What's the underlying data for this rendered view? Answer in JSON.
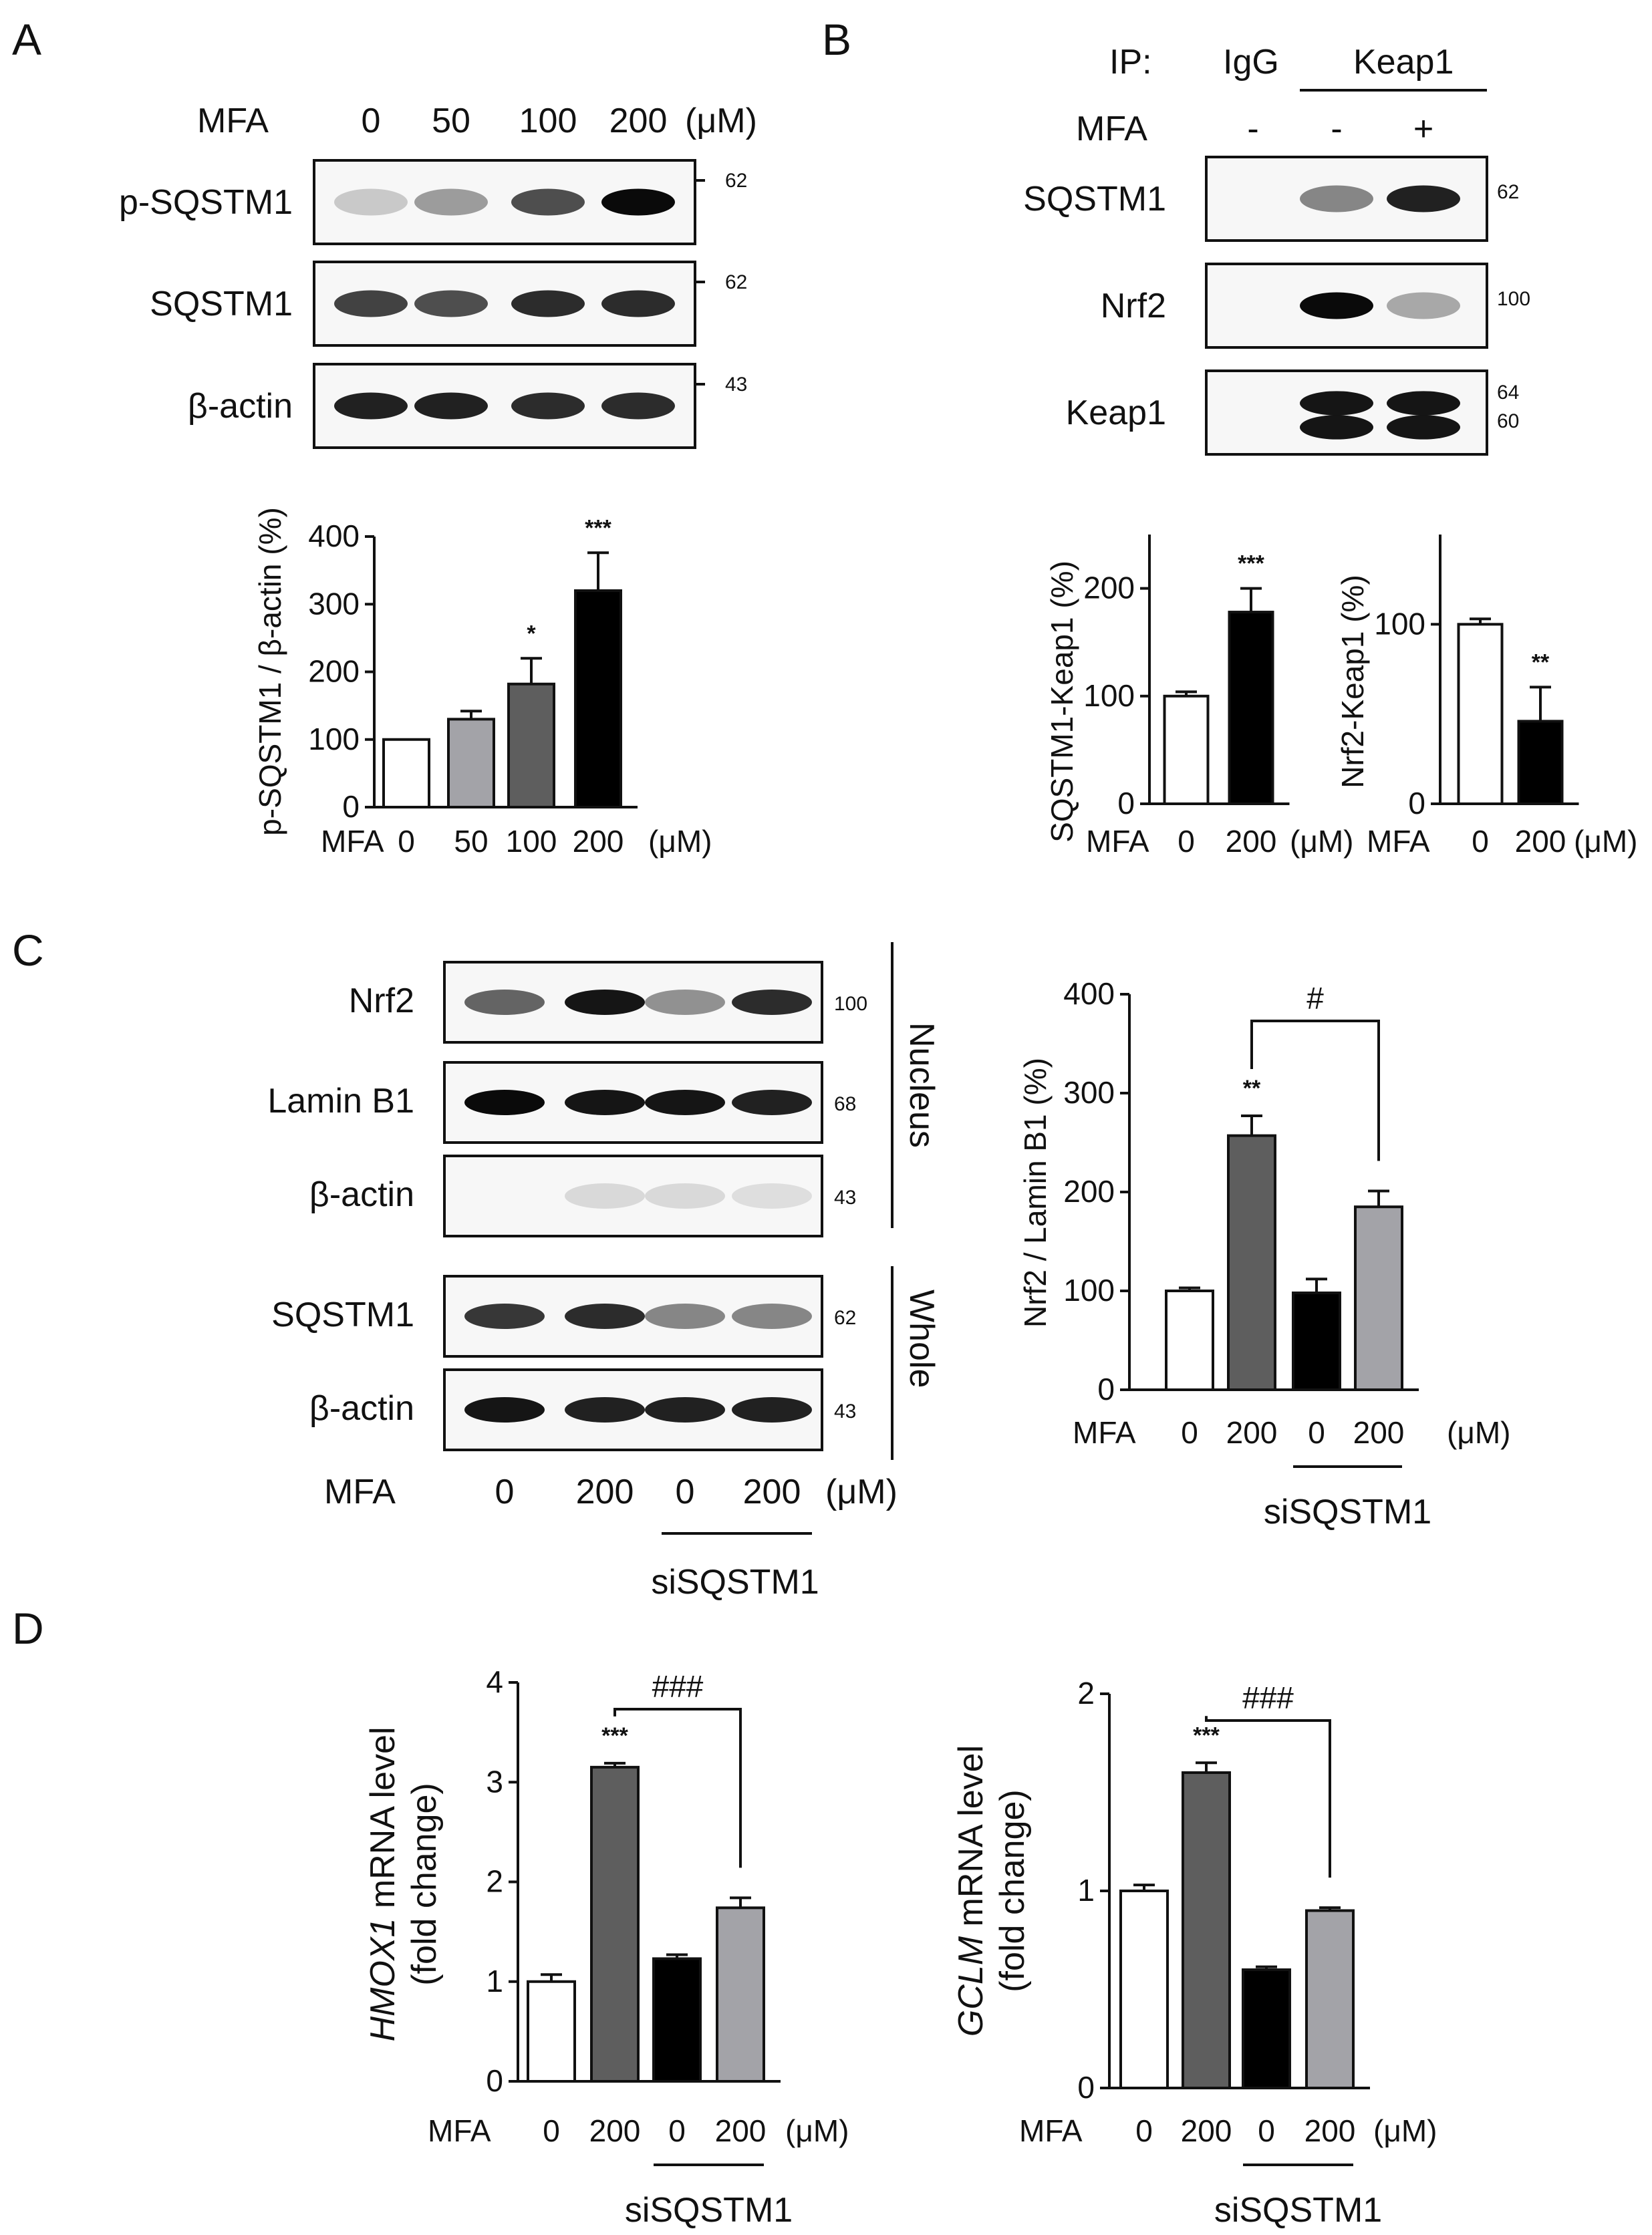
{
  "panels": {
    "A": {
      "letter": "A",
      "blot": {
        "treat_label": "MFA",
        "unit": "(μM)",
        "lanes": [
          "0",
          "50",
          "100",
          "200"
        ],
        "rows": [
          {
            "label": "p-SQSTM1",
            "mw": "62",
            "bands": [
              0.15,
              0.35,
              0.7,
              1.0
            ]
          },
          {
            "label": "SQSTM1",
            "mw": "62",
            "bands": [
              0.75,
              0.7,
              0.85,
              0.85
            ]
          },
          {
            "label": "β-actin",
            "mw": "43",
            "bands": [
              0.9,
              0.9,
              0.85,
              0.85
            ]
          }
        ]
      }
    },
    "B": {
      "letter": "B",
      "ip_label": "IP:",
      "ip_groups": [
        "IgG",
        "Keap1"
      ],
      "treat_label": "MFA",
      "signs": [
        "-",
        "-",
        "+"
      ],
      "rows": [
        {
          "label": "SQSTM1",
          "mw": [
            "62"
          ],
          "bands": [
            0,
            0.45,
            0.9
          ]
        },
        {
          "label": "Nrf2",
          "mw": [
            "100"
          ],
          "bands": [
            0,
            1.0,
            0.3
          ]
        },
        {
          "label": "Keap1",
          "mw": [
            "64",
            "60"
          ],
          "bands": [
            0,
            0.95,
            0.95
          ]
        }
      ]
    },
    "C": {
      "letter": "C",
      "blot": {
        "treat_label": "MFA",
        "unit": "(μM)",
        "lanes": [
          "0",
          "200",
          "0",
          "200"
        ],
        "group_label": "siSQSTM1",
        "section_labels": [
          "Nucleus",
          "Whole"
        ],
        "rows": [
          {
            "label": "Nrf2",
            "mw": "100",
            "bands": [
              0.6,
              0.95,
              0.4,
              0.85
            ]
          },
          {
            "label": "Lamin B1",
            "mw": "68",
            "bands": [
              1.0,
              0.95,
              0.95,
              0.9
            ]
          },
          {
            "label": "β-actin",
            "mw": "43",
            "bands": [
              0.0,
              0.08,
              0.08,
              0.06
            ]
          },
          {
            "label": "SQSTM1",
            "mw": "62",
            "bands": [
              0.8,
              0.85,
              0.45,
              0.45
            ]
          },
          {
            "label": "β-actin",
            "mw": "43",
            "bands": [
              0.95,
              0.9,
              0.9,
              0.9
            ]
          }
        ]
      }
    },
    "D": {
      "letter": "D"
    }
  },
  "chart_data": [
    {
      "id": "A",
      "type": "bar",
      "ylabel": "p-SQSTM1 / β-actin (%)",
      "xlabel_prefix": "MFA",
      "unit": "(μM)",
      "categories": [
        "0",
        "50",
        "100",
        "200"
      ],
      "values": [
        100,
        130,
        182,
        320
      ],
      "errors": [
        0,
        12,
        38,
        56
      ],
      "colors": [
        "#ffffff",
        "#a3a3a8",
        "#5e5e5e",
        "#000000"
      ],
      "annotations": [
        "",
        "",
        "*",
        "***"
      ],
      "ylim": [
        0,
        400
      ],
      "yticks": [
        0,
        100,
        200,
        300,
        400
      ]
    },
    {
      "id": "B-left",
      "type": "bar",
      "ylabel": "SQSTM1-Keap1 (%)",
      "xlabel_prefix": "MFA",
      "unit": "(μM)",
      "categories": [
        "0",
        "200"
      ],
      "values": [
        100,
        178
      ],
      "errors": [
        4,
        22
      ],
      "colors": [
        "#ffffff",
        "#000000"
      ],
      "annotations": [
        "",
        "***"
      ],
      "ylim": [
        0,
        250
      ],
      "yticks": [
        0,
        100,
        200
      ]
    },
    {
      "id": "B-right",
      "type": "bar",
      "ylabel": "Nrf2-Keap1 (%)",
      "xlabel_prefix": "MFA",
      "unit": "(μM)",
      "categories": [
        "0",
        "200"
      ],
      "values": [
        100,
        46
      ],
      "errors": [
        3,
        19
      ],
      "colors": [
        "#ffffff",
        "#000000"
      ],
      "annotations": [
        "",
        "**"
      ],
      "ylim": [
        0,
        150
      ],
      "yticks": [
        0,
        100
      ]
    },
    {
      "id": "C",
      "type": "bar",
      "ylabel": "Nrf2 / Lamin B1 (%)",
      "xlabel_prefix": "MFA",
      "unit": "(μM)",
      "group_label": "siSQSTM1",
      "categories": [
        "0",
        "200",
        "0",
        "200"
      ],
      "values": [
        100,
        257,
        98,
        185
      ],
      "errors": [
        3,
        20,
        14,
        16
      ],
      "colors": [
        "#ffffff",
        "#5e5e5e",
        "#000000",
        "#a3a3a8"
      ],
      "annotations": [
        "",
        "**",
        "",
        ""
      ],
      "bracket": {
        "from": 1,
        "to": 3,
        "label": "#"
      },
      "ylim": [
        0,
        400
      ],
      "yticks": [
        0,
        100,
        200,
        300,
        400
      ]
    },
    {
      "id": "D-left",
      "type": "bar",
      "ylabel_italic": "HMOX1",
      "ylabel_rest": " mRNA level",
      "ylabel_line2": "(fold change)",
      "xlabel_prefix": "MFA",
      "unit": "(μM)",
      "group_label": "siSQSTM1",
      "categories": [
        "0",
        "200",
        "0",
        "200"
      ],
      "values": [
        1.0,
        3.15,
        1.23,
        1.74
      ],
      "errors": [
        0.07,
        0.04,
        0.04,
        0.1
      ],
      "colors": [
        "#ffffff",
        "#5e5e5e",
        "#000000",
        "#a3a3a8"
      ],
      "annotations": [
        "",
        "***",
        "",
        ""
      ],
      "bracket": {
        "from": 1,
        "to": 3,
        "label": "###"
      },
      "ylim": [
        0,
        4
      ],
      "yticks": [
        0,
        1,
        2,
        3,
        4
      ]
    },
    {
      "id": "D-right",
      "type": "bar",
      "ylabel_italic": "GCLM",
      "ylabel_rest": " mRNA level",
      "ylabel_line2": "(fold change)",
      "xlabel_prefix": "MFA",
      "unit": "(μM)",
      "group_label": "siSQSTM1",
      "categories": [
        "0",
        "200",
        "0",
        "200"
      ],
      "values": [
        1.0,
        1.6,
        0.6,
        0.9
      ],
      "errors": [
        0.03,
        0.05,
        0.015,
        0.015
      ],
      "colors": [
        "#ffffff",
        "#5e5e5e",
        "#000000",
        "#a3a3a8"
      ],
      "annotations": [
        "",
        "***",
        "",
        ""
      ],
      "bracket": {
        "from": 1,
        "to": 3,
        "label": "###"
      },
      "ylim": [
        0,
        2
      ],
      "yticks": [
        0,
        1,
        2
      ]
    }
  ]
}
